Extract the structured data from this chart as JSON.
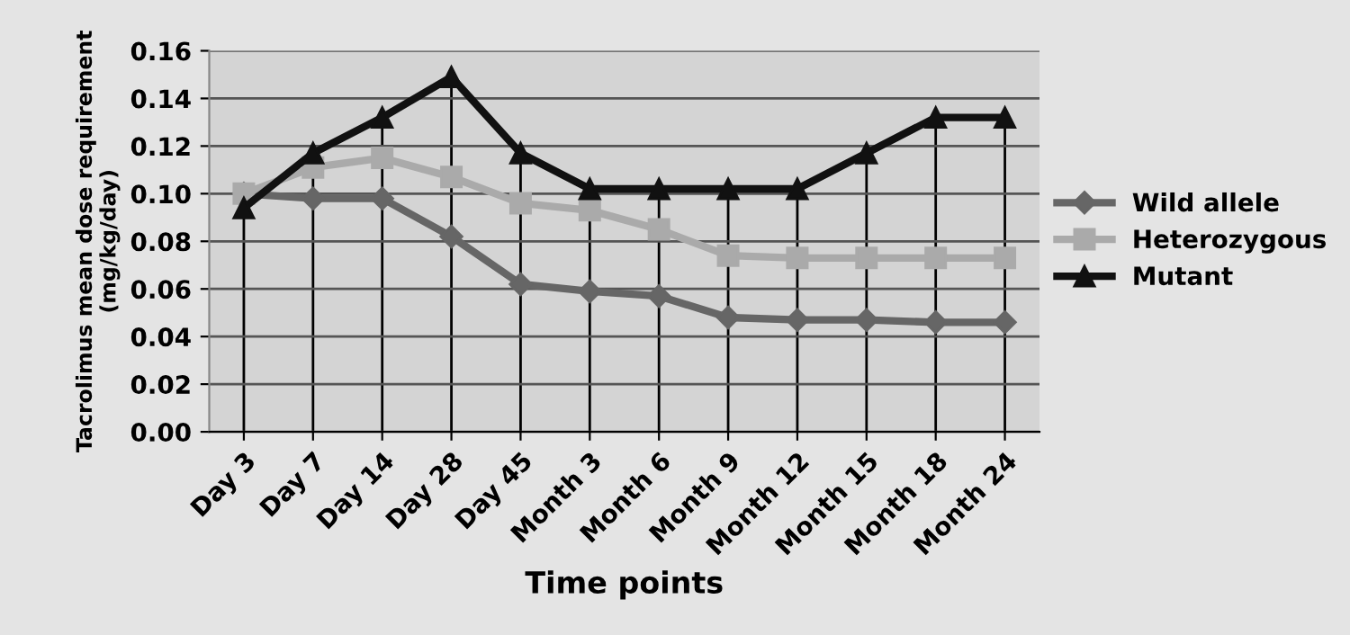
{
  "chart_data": {
    "type": "line",
    "xlabel": "Time points",
    "ylabel": "Tacrolimus mean dose requirement\n(mg/kg/day)",
    "categories": [
      "Day 3",
      "Day 7",
      "Day 14",
      "Day 28",
      "Day 45",
      "Month 3",
      "Month 6",
      "Month 9",
      "Month 12",
      "Month 15",
      "Month 18",
      "Month 24"
    ],
    "series": [
      {
        "name": "Wild allele",
        "color": "#666666",
        "marker": "diamond",
        "values": [
          0.1,
          0.098,
          0.098,
          0.082,
          0.062,
          0.059,
          0.057,
          0.048,
          0.047,
          0.047,
          0.046,
          0.046
        ]
      },
      {
        "name": "Heterozygous",
        "color": "#aaaaaa",
        "marker": "square",
        "values": [
          0.1,
          0.111,
          0.115,
          0.107,
          0.096,
          0.093,
          0.085,
          0.074,
          0.073,
          0.073,
          0.073,
          0.073
        ]
      },
      {
        "name": "Mutant",
        "color": "#111111",
        "marker": "triangle",
        "values": [
          0.094,
          0.117,
          0.132,
          0.149,
          0.117,
          0.102,
          0.102,
          0.102,
          0.102,
          0.117,
          0.132,
          0.132
        ]
      }
    ],
    "ylim": [
      0,
      0.16
    ],
    "yticks": [
      {
        "value": 0,
        "label": "0.00"
      },
      {
        "value": 0.02,
        "label": "0.02"
      },
      {
        "value": 0.04,
        "label": "0.04"
      },
      {
        "value": 0.06,
        "label": "0.06"
      },
      {
        "value": 0.08,
        "label": "0.08"
      },
      {
        "value": 0.1,
        "label": "0.10"
      },
      {
        "value": 0.12,
        "label": "0.12"
      },
      {
        "value": 0.14,
        "label": "0.14"
      },
      {
        "value": 0.16,
        "label": "0.16"
      }
    ],
    "grid": true,
    "legend": "right",
    "line_style": "solid"
  }
}
